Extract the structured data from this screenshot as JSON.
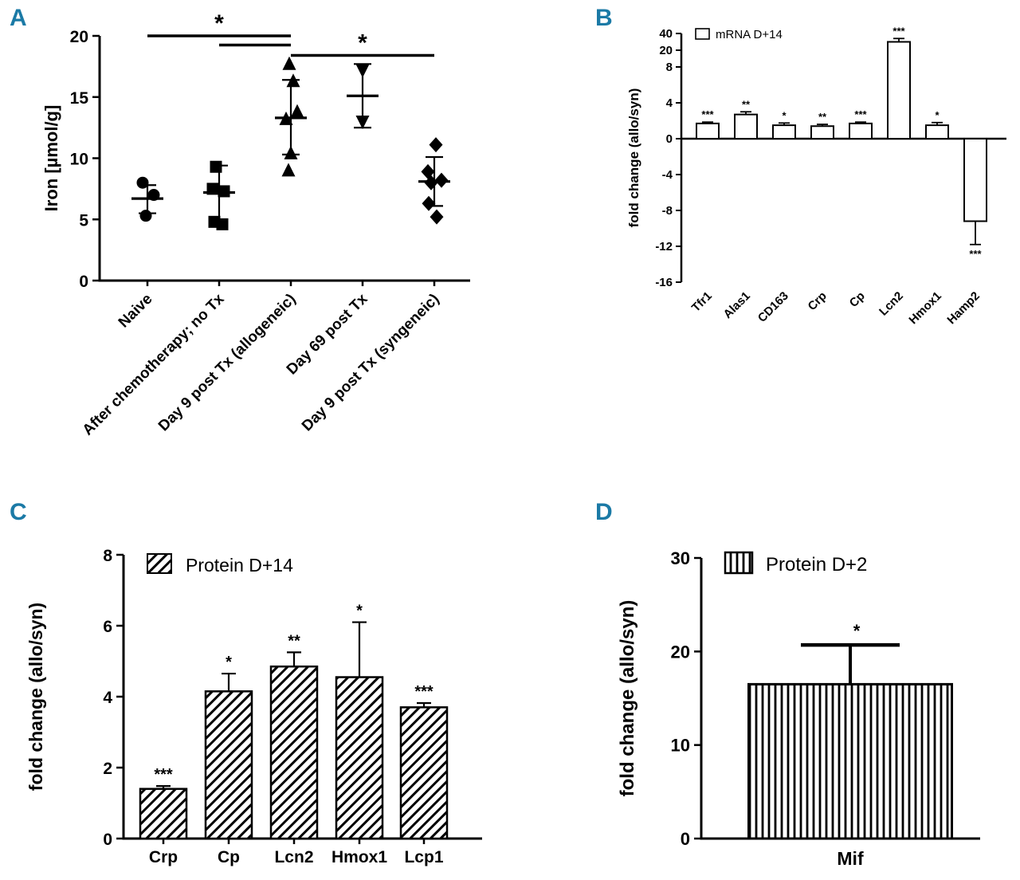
{
  "figure": {
    "background": "#ffffff",
    "panel_label_color": "#1b7aa6",
    "ink_color": "#000000"
  },
  "panels": {
    "A": {
      "label": "A"
    },
    "B": {
      "label": "B"
    },
    "C": {
      "label": "C"
    },
    "D": {
      "label": "D"
    }
  },
  "chart_data": [
    {
      "panel": "A",
      "type": "scatter",
      "ylabel": "Iron [µmol/g]",
      "ylim": [
        0,
        20
      ],
      "yticks": [
        0,
        5,
        10,
        15,
        20
      ],
      "groups": [
        {
          "label": "Naive",
          "marker": "circle",
          "points": [
            8.0,
            7.0,
            5.3
          ],
          "mean": 6.7,
          "sd_low": 5.5,
          "sd_high": 7.8
        },
        {
          "label": "After chemotherapy; no Tx",
          "marker": "square",
          "points": [
            9.3,
            7.5,
            7.3,
            4.8,
            4.6
          ],
          "mean": 7.2,
          "sd_low": 5.0,
          "sd_high": 9.4
        },
        {
          "label": "Day 9 post Tx (allogeneic)",
          "marker": "triangle-up",
          "points": [
            17.7,
            16.3,
            13.8,
            13.2,
            10.4,
            9.0
          ],
          "mean": 13.3,
          "sd_low": 10.3,
          "sd_high": 16.4
        },
        {
          "label": "Day 69 post Tx",
          "marker": "triangle-down",
          "points": [
            17.2,
            13.0
          ],
          "mean": 15.1,
          "sd_low": 12.5,
          "sd_high": 17.7
        },
        {
          "label": "Day 9 post Tx (syngeneic)",
          "marker": "diamond",
          "points": [
            11.1,
            8.9,
            8.2,
            8.0,
            6.3,
            5.2
          ],
          "mean": 8.1,
          "sd_low": 6.1,
          "sd_high": 10.1
        }
      ],
      "sig_bars": [
        {
          "from": 0,
          "to": 2,
          "y": 20.0,
          "label": "*"
        },
        {
          "from": 1,
          "to": 2,
          "y": 19.25,
          "label": ""
        },
        {
          "from": 2,
          "to": 4,
          "y": 18.4,
          "label": "*"
        }
      ]
    },
    {
      "panel": "B",
      "type": "bar",
      "legend": "mRNA D+14",
      "bar_style": "open",
      "ylabel": "fold change (allo/syn)",
      "yticks": [
        -16,
        -12,
        -8,
        -4,
        0,
        4,
        8,
        20,
        40
      ],
      "axis_break": {
        "above_value": 8,
        "upper_ticks": [
          20,
          40
        ]
      },
      "categories": [
        "Tfr1",
        "Alas1",
        "CD163",
        "Crp",
        "Cp",
        "Lcn2",
        "Hmox1",
        "Hamp2"
      ],
      "values": [
        1.7,
        2.7,
        1.5,
        1.4,
        1.7,
        30,
        1.5,
        -9.2
      ],
      "errors": [
        0.15,
        0.3,
        0.25,
        0.2,
        0.15,
        4,
        0.3,
        2.6
      ],
      "sig": [
        "***",
        "**",
        "*",
        "**",
        "***",
        "***",
        "*",
        "***"
      ]
    },
    {
      "panel": "C",
      "type": "bar",
      "legend": "Protein D+14",
      "bar_style": "hatch-diagonal",
      "ylabel": "fold change (allo/syn)",
      "ylim": [
        0,
        8
      ],
      "yticks": [
        0,
        2,
        4,
        6,
        8
      ],
      "categories": [
        "Crp",
        "Cp",
        "Lcn2",
        "Hmox1",
        "Lcp1"
      ],
      "values": [
        1.4,
        4.15,
        4.85,
        4.55,
        3.7
      ],
      "errors": [
        0.08,
        0.5,
        0.4,
        1.55,
        0.12
      ],
      "sig": [
        "***",
        "*",
        "**",
        "*",
        "***"
      ]
    },
    {
      "panel": "D",
      "type": "bar",
      "legend": "Protein D+2",
      "bar_style": "hatch-vertical",
      "ylabel": "fold change (allo/syn)",
      "ylim": [
        0,
        30
      ],
      "yticks": [
        0,
        10,
        20,
        30
      ],
      "categories": [
        "Mif"
      ],
      "values": [
        16.5
      ],
      "errors": [
        4.2
      ],
      "sig": [
        "*"
      ]
    }
  ]
}
